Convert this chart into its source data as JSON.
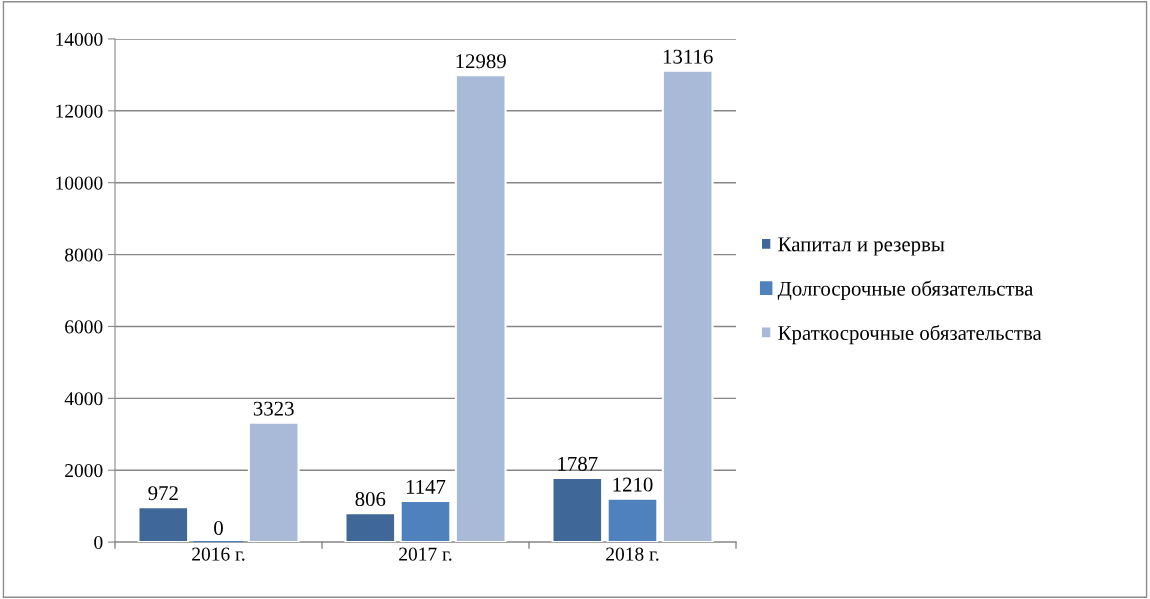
{
  "chart_data": {
    "type": "bar",
    "categories": [
      "2016 г.",
      "2017 г.",
      "2018 г."
    ],
    "series": [
      {
        "name": "Капитал и резервы",
        "color": "#3f6797",
        "values": [
          972,
          806,
          1787
        ]
      },
      {
        "name": "Долгосрочные обязательства",
        "color": "#4f81bd",
        "values": [
          0,
          1147,
          1210
        ]
      },
      {
        "name": "Краткосрочные обязательства",
        "color": "#a9b9d8",
        "values": [
          3323,
          12989,
          13116
        ]
      }
    ],
    "ylim": [
      0,
      14000
    ],
    "yticks": [
      0,
      2000,
      4000,
      6000,
      8000,
      10000,
      12000,
      14000
    ],
    "grid": "y",
    "legend": "right",
    "data_labels": true
  }
}
